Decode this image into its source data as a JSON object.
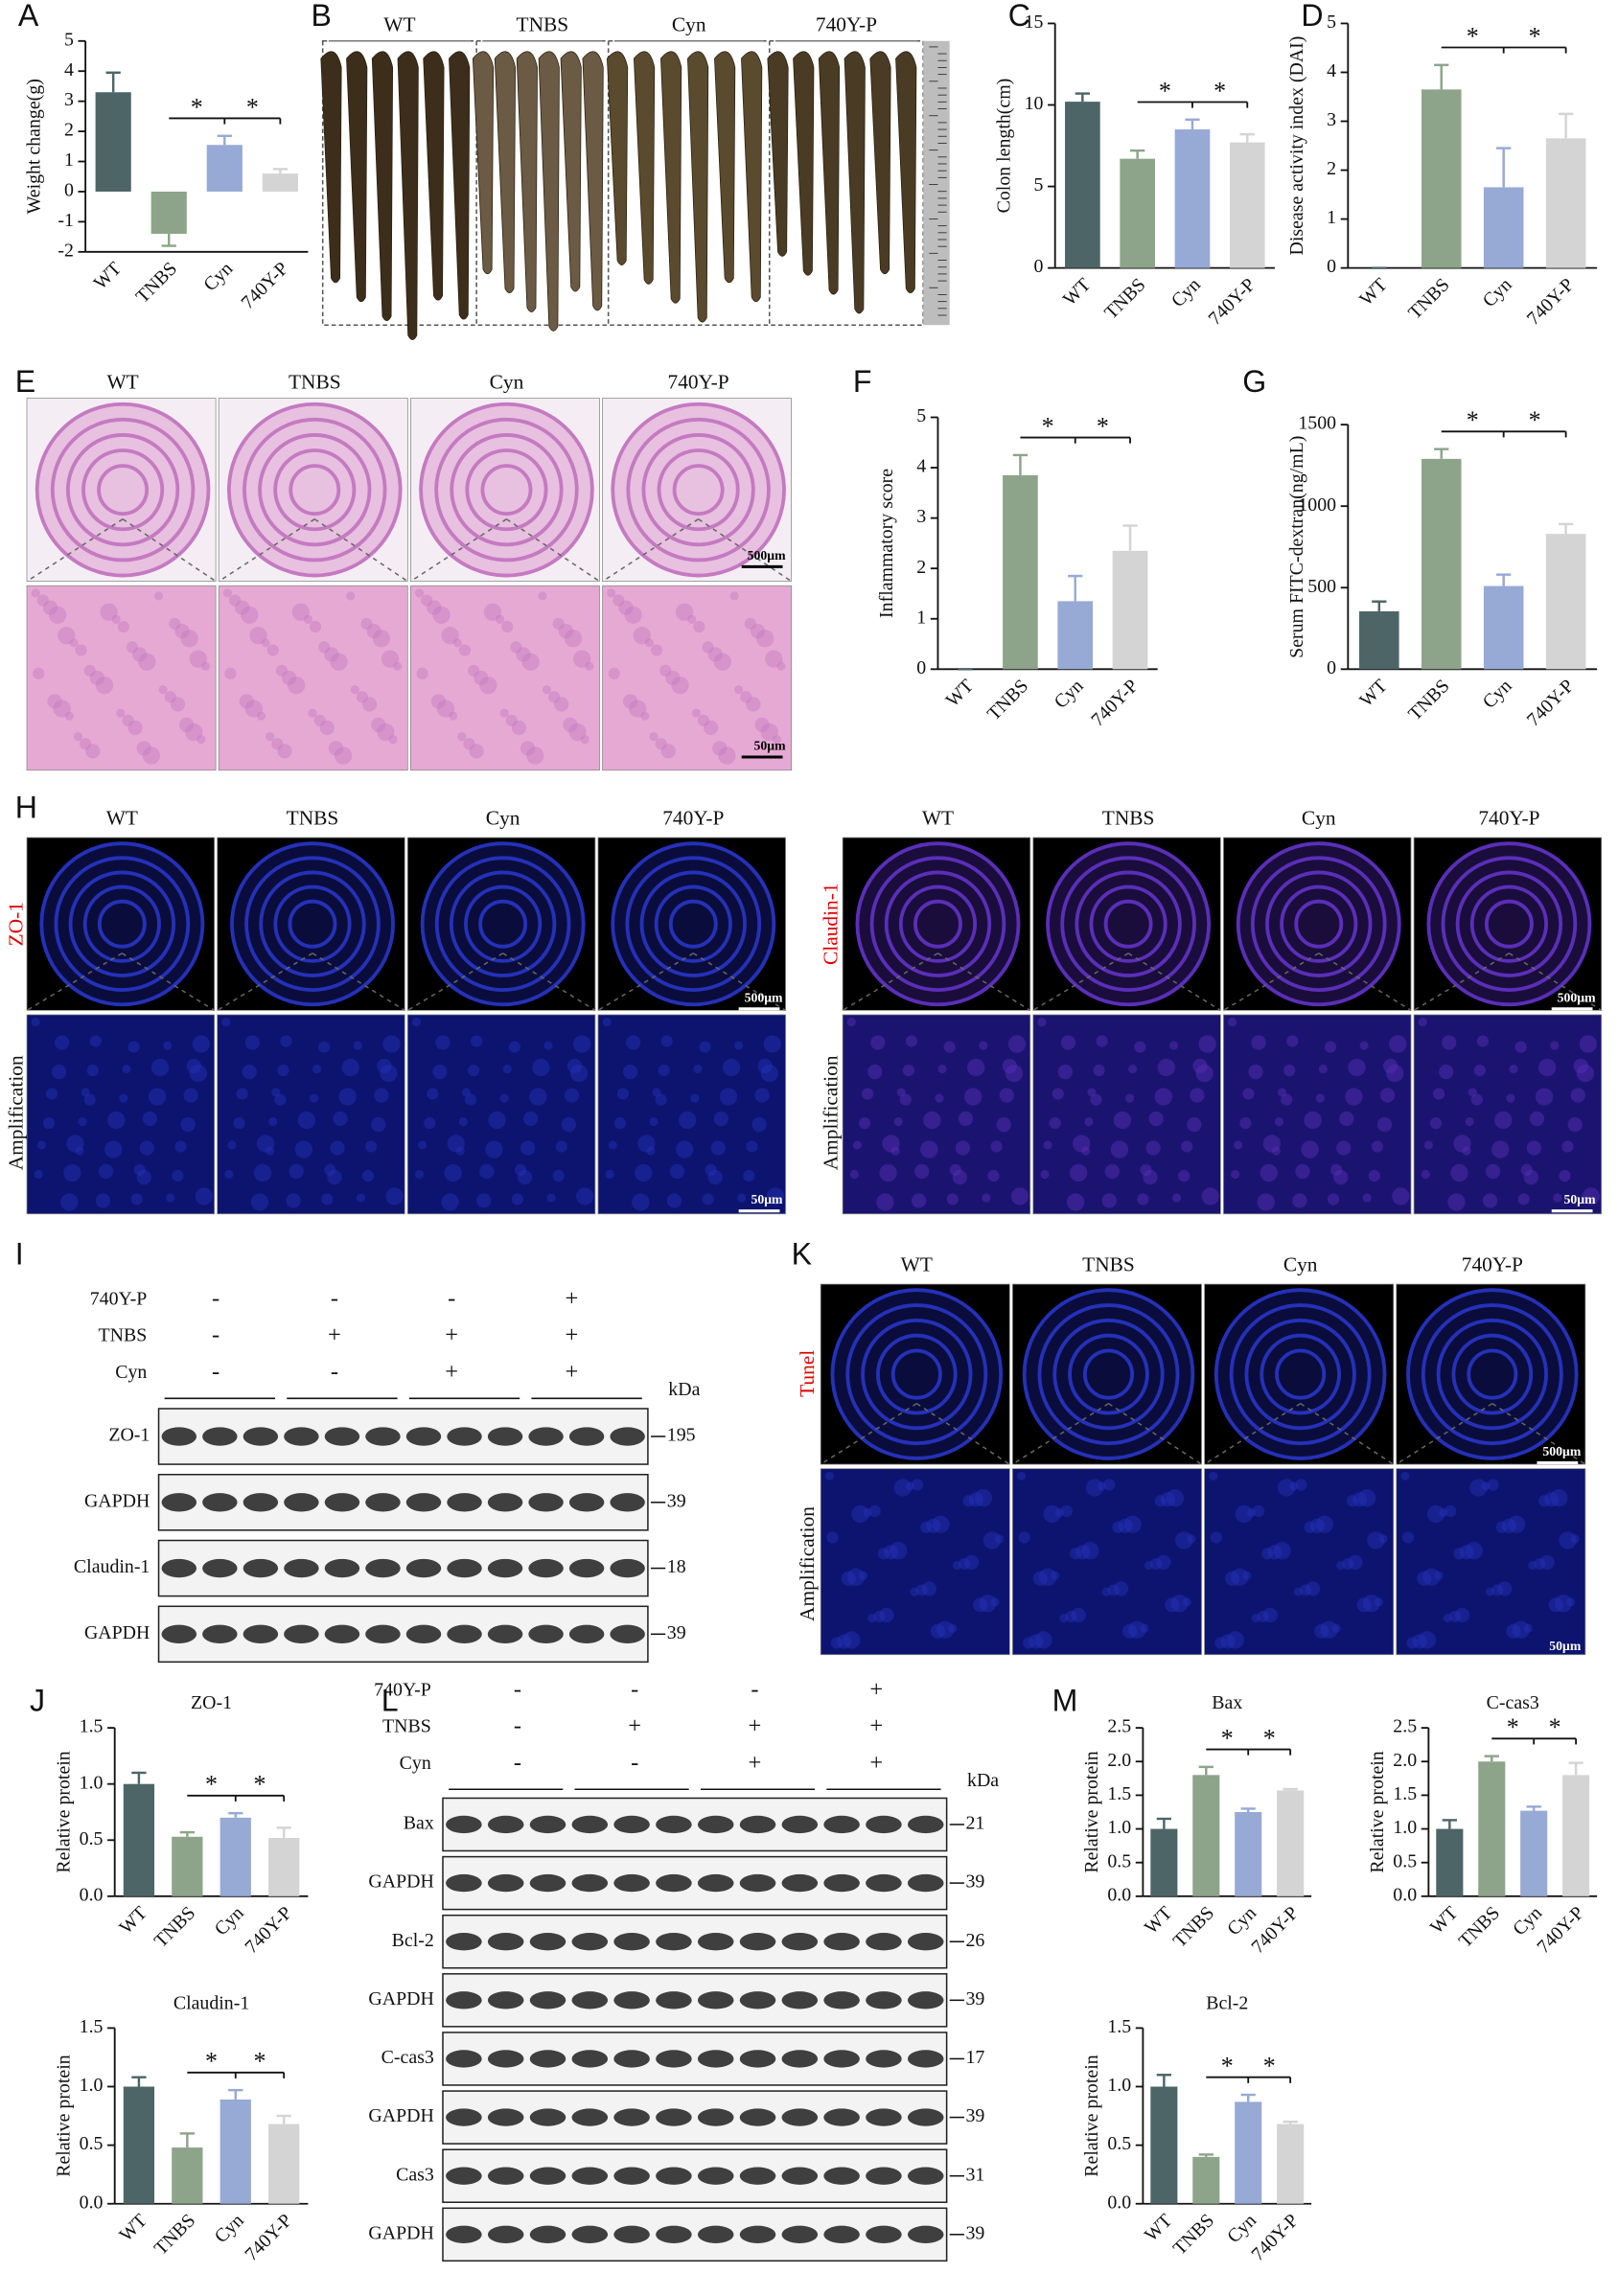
{
  "chart_data": [
    {
      "panel": "A",
      "type": "bar",
      "ylabel": "Weight change(g)",
      "categories": [
        "WT",
        "TNBS",
        "Cyn",
        "740Y-P"
      ],
      "values": [
        3.3,
        -1.4,
        1.55,
        0.6
      ],
      "errors": [
        0.65,
        0.4,
        0.3,
        0.15
      ],
      "colors": [
        "#4e6567",
        "#8da48a",
        "#97a9d5",
        "#d4d4d4"
      ],
      "ylim": [
        -2,
        5
      ],
      "yticks": [
        -2,
        -1,
        0,
        1,
        2,
        3,
        4,
        5
      ],
      "significance": [
        {
          "from": 1,
          "to": 2,
          "label": "*"
        },
        {
          "from": 2,
          "to": 3,
          "label": "*"
        }
      ]
    },
    {
      "panel": "C",
      "type": "bar",
      "ylabel": "Colon length(cm)",
      "categories": [
        "WT",
        "TNBS",
        "Cyn",
        "740Y-P"
      ],
      "values": [
        10.2,
        6.7,
        8.5,
        7.7
      ],
      "errors": [
        0.5,
        0.5,
        0.6,
        0.5
      ],
      "colors": [
        "#4e6567",
        "#8da48a",
        "#97a9d5",
        "#d4d4d4"
      ],
      "ylim": [
        0,
        15
      ],
      "yticks": [
        0,
        5,
        10,
        15
      ],
      "significance": [
        {
          "from": 1,
          "to": 2,
          "label": "*"
        },
        {
          "from": 2,
          "to": 3,
          "label": "*"
        }
      ]
    },
    {
      "panel": "D",
      "type": "bar",
      "ylabel": "Disease activity index (DAI)",
      "categories": [
        "WT",
        "TNBS",
        "Cyn",
        "740Y-P"
      ],
      "values": [
        0,
        3.65,
        1.65,
        2.65
      ],
      "errors": [
        0,
        0.5,
        0.8,
        0.5
      ],
      "colors": [
        "#4e6567",
        "#8da48a",
        "#97a9d5",
        "#d4d4d4"
      ],
      "ylim": [
        0,
        5
      ],
      "yticks": [
        0,
        1,
        2,
        3,
        4,
        5
      ],
      "significance": [
        {
          "from": 1,
          "to": 2,
          "label": "*"
        },
        {
          "from": 2,
          "to": 3,
          "label": "*"
        }
      ]
    },
    {
      "panel": "F",
      "type": "bar",
      "ylabel": "Inflammatory score",
      "categories": [
        "WT",
        "TNBS",
        "Cyn",
        "740Y-P"
      ],
      "values": [
        0,
        3.85,
        1.35,
        2.35
      ],
      "errors": [
        0,
        0.4,
        0.5,
        0.5
      ],
      "colors": [
        "#4e6567",
        "#8da48a",
        "#97a9d5",
        "#d4d4d4"
      ],
      "ylim": [
        0,
        5
      ],
      "yticks": [
        0,
        1,
        2,
        3,
        4,
        5
      ],
      "significance": [
        {
          "from": 1,
          "to": 2,
          "label": "*"
        },
        {
          "from": 2,
          "to": 3,
          "label": "*"
        }
      ]
    },
    {
      "panel": "G",
      "type": "bar",
      "ylabel": "Serum FITC-dextran(ng/mL)",
      "categories": [
        "WT",
        "TNBS",
        "Cyn",
        "740Y-P"
      ],
      "values": [
        355,
        1290,
        510,
        830
      ],
      "errors": [
        60,
        60,
        70,
        60
      ],
      "colors": [
        "#4e6567",
        "#8da48a",
        "#97a9d5",
        "#d4d4d4"
      ],
      "ylim": [
        0,
        1500
      ],
      "yticks": [
        0,
        500,
        1000,
        1500
      ],
      "significance": [
        {
          "from": 1,
          "to": 2,
          "label": "*"
        },
        {
          "from": 2,
          "to": 3,
          "label": "*"
        }
      ]
    },
    {
      "panel": "J",
      "type": "bar",
      "title": "ZO-1",
      "ylabel": "Relative protein",
      "categories": [
        "WT",
        "TNBS",
        "Cyn",
        "740Y-P"
      ],
      "values": [
        1.0,
        0.53,
        0.7,
        0.52
      ],
      "errors": [
        0.1,
        0.04,
        0.04,
        0.09
      ],
      "colors": [
        "#4e6567",
        "#8da48a",
        "#97a9d5",
        "#d4d4d4"
      ],
      "ylim": [
        0,
        1.5
      ],
      "yticks": [
        {
          "value": 0,
          "label": "0.0"
        },
        {
          "value": 0.5,
          "label": "0.5"
        },
        {
          "value": 1,
          "label": "1.0"
        },
        {
          "value": 1.5,
          "label": "1.5"
        }
      ],
      "significance": [
        {
          "from": 1,
          "to": 2,
          "label": "*"
        },
        {
          "from": 2,
          "to": 3,
          "label": "*"
        }
      ]
    },
    {
      "type": "bar",
      "title": "Claudin-1",
      "ylabel": "Relative protein",
      "categories": [
        "WT",
        "TNBS",
        "Cyn",
        "740Y-P"
      ],
      "values": [
        1.0,
        0.48,
        0.89,
        0.68
      ],
      "errors": [
        0.08,
        0.12,
        0.08,
        0.07
      ],
      "colors": [
        "#4e6567",
        "#8da48a",
        "#97a9d5",
        "#d4d4d4"
      ],
      "ylim": [
        0,
        1.5
      ],
      "yticks": [
        {
          "value": 0,
          "label": "0.0"
        },
        {
          "value": 0.5,
          "label": "0.5"
        },
        {
          "value": 1,
          "label": "1.0"
        },
        {
          "value": 1.5,
          "label": "1.5"
        }
      ],
      "significance": [
        {
          "from": 1,
          "to": 2,
          "label": "*"
        },
        {
          "from": 2,
          "to": 3,
          "label": "*"
        }
      ]
    },
    {
      "panel": "M",
      "type": "bar",
      "title": "Bax",
      "ylabel": "Relative protein",
      "categories": [
        "WT",
        "TNBS",
        "Cyn",
        "740Y-P"
      ],
      "values": [
        1.0,
        1.8,
        1.25,
        1.57
      ],
      "errors": [
        0.15,
        0.12,
        0.05,
        0.02
      ],
      "colors": [
        "#4e6567",
        "#8da48a",
        "#97a9d5",
        "#d4d4d4"
      ],
      "ylim": [
        0,
        2.5
      ],
      "yticks": [
        {
          "value": 0,
          "label": "0.0"
        },
        {
          "value": 0.5,
          "label": "0.5"
        },
        {
          "value": 1,
          "label": "1.0"
        },
        {
          "value": 1.5,
          "label": "1.5"
        },
        {
          "value": 2,
          "label": "2.0"
        },
        {
          "value": 2.5,
          "label": "2.5"
        }
      ],
      "significance": [
        {
          "from": 1,
          "to": 2,
          "label": "*"
        },
        {
          "from": 2,
          "to": 3,
          "label": "*"
        }
      ]
    },
    {
      "type": "bar",
      "title": "C-cas3",
      "ylabel": "Relative protein",
      "categories": [
        "WT",
        "TNBS",
        "Cyn",
        "740Y-P"
      ],
      "values": [
        1.0,
        2.0,
        1.27,
        1.8
      ],
      "errors": [
        0.13,
        0.08,
        0.06,
        0.18
      ],
      "colors": [
        "#4e6567",
        "#8da48a",
        "#97a9d5",
        "#d4d4d4"
      ],
      "ylim": [
        0,
        2.5
      ],
      "yticks": [
        {
          "value": 0,
          "label": "0.0"
        },
        {
          "value": 0.5,
          "label": "0.5"
        },
        {
          "value": 1,
          "label": "1.0"
        },
        {
          "value": 1.5,
          "label": "1.5"
        },
        {
          "value": 2,
          "label": "2.0"
        },
        {
          "value": 2.5,
          "label": "2.5"
        }
      ],
      "significance": [
        {
          "from": 1,
          "to": 2,
          "label": "*"
        },
        {
          "from": 2,
          "to": 3,
          "label": "*"
        }
      ]
    },
    {
      "type": "bar",
      "title": "Bcl-2",
      "ylabel": "Relative protein",
      "categories": [
        "WT",
        "TNBS",
        "Cyn",
        "740Y-P"
      ],
      "values": [
        1.0,
        0.4,
        0.87,
        0.68
      ],
      "errors": [
        0.1,
        0.02,
        0.06,
        0.02
      ],
      "colors": [
        "#4e6567",
        "#8da48a",
        "#97a9d5",
        "#d4d4d4"
      ],
      "ylim": [
        0,
        1.5
      ],
      "yticks": [
        {
          "value": 0,
          "label": "0.0"
        },
        {
          "value": 0.5,
          "label": "0.5"
        },
        {
          "value": 1,
          "label": "1.0"
        },
        {
          "value": 1.5,
          "label": "1.5"
        }
      ],
      "significance": [
        {
          "from": 1,
          "to": 2,
          "label": "*"
        },
        {
          "from": 2,
          "to": 3,
          "label": "*"
        }
      ]
    }
  ],
  "photo_panel": {
    "panel": "B",
    "groups": [
      "WT",
      "TNBS",
      "Cyn",
      "740Y-P"
    ]
  },
  "histology": {
    "panel": "E",
    "groups": [
      "WT",
      "TNBS",
      "Cyn",
      "740Y-P"
    ],
    "scale_bars": [
      "500μm",
      "50μm"
    ]
  },
  "immunofluorescence": {
    "panel": "H",
    "groups": [
      "WT",
      "TNBS",
      "Cyn",
      "740Y-P"
    ],
    "stains": [
      "ZO-1",
      "Claudin-1"
    ],
    "row_label": "Amplification",
    "scale_bars": [
      "500μm",
      "50μm"
    ]
  },
  "tunel": {
    "panel": "K",
    "groups": [
      "WT",
      "TNBS",
      "Cyn",
      "740Y-P"
    ],
    "stain": "Tunel",
    "row_label": "Amplification",
    "scale_bars": [
      "500μm",
      "50μm"
    ]
  },
  "blot_I": {
    "panel": "I",
    "unit": "kDa",
    "treatments": [
      {
        "name": "740Y-P",
        "signs": [
          "-",
          "-",
          "-",
          "+"
        ]
      },
      {
        "name": "TNBS",
        "signs": [
          "-",
          "+",
          "+",
          "+"
        ]
      },
      {
        "name": "Cyn",
        "signs": [
          "-",
          "-",
          "+",
          "+"
        ]
      }
    ],
    "bands": [
      {
        "name": "ZO-1",
        "kda": 195
      },
      {
        "name": "GAPDH",
        "kda": 39
      },
      {
        "name": "Claudin-1",
        "kda": 18
      },
      {
        "name": "GAPDH",
        "kda": 39
      }
    ]
  },
  "blot_L": {
    "panel": "L",
    "unit": "kDa",
    "treatments": [
      {
        "name": "740Y-P",
        "signs": [
          "-",
          "-",
          "-",
          "+"
        ]
      },
      {
        "name": "TNBS",
        "signs": [
          "-",
          "+",
          "+",
          "+"
        ]
      },
      {
        "name": "Cyn",
        "signs": [
          "-",
          "-",
          "+",
          "+"
        ]
      }
    ],
    "bands": [
      {
        "name": "Bax",
        "kda": 21
      },
      {
        "name": "GAPDH",
        "kda": 39
      },
      {
        "name": "Bcl-2",
        "kda": 26
      },
      {
        "name": "GAPDH",
        "kda": 39
      },
      {
        "name": "C-cas3",
        "kda": 17
      },
      {
        "name": "GAPDH",
        "kda": 39
      },
      {
        "name": "Cas3",
        "kda": 31
      },
      {
        "name": "GAPDH",
        "kda": 39
      }
    ]
  }
}
